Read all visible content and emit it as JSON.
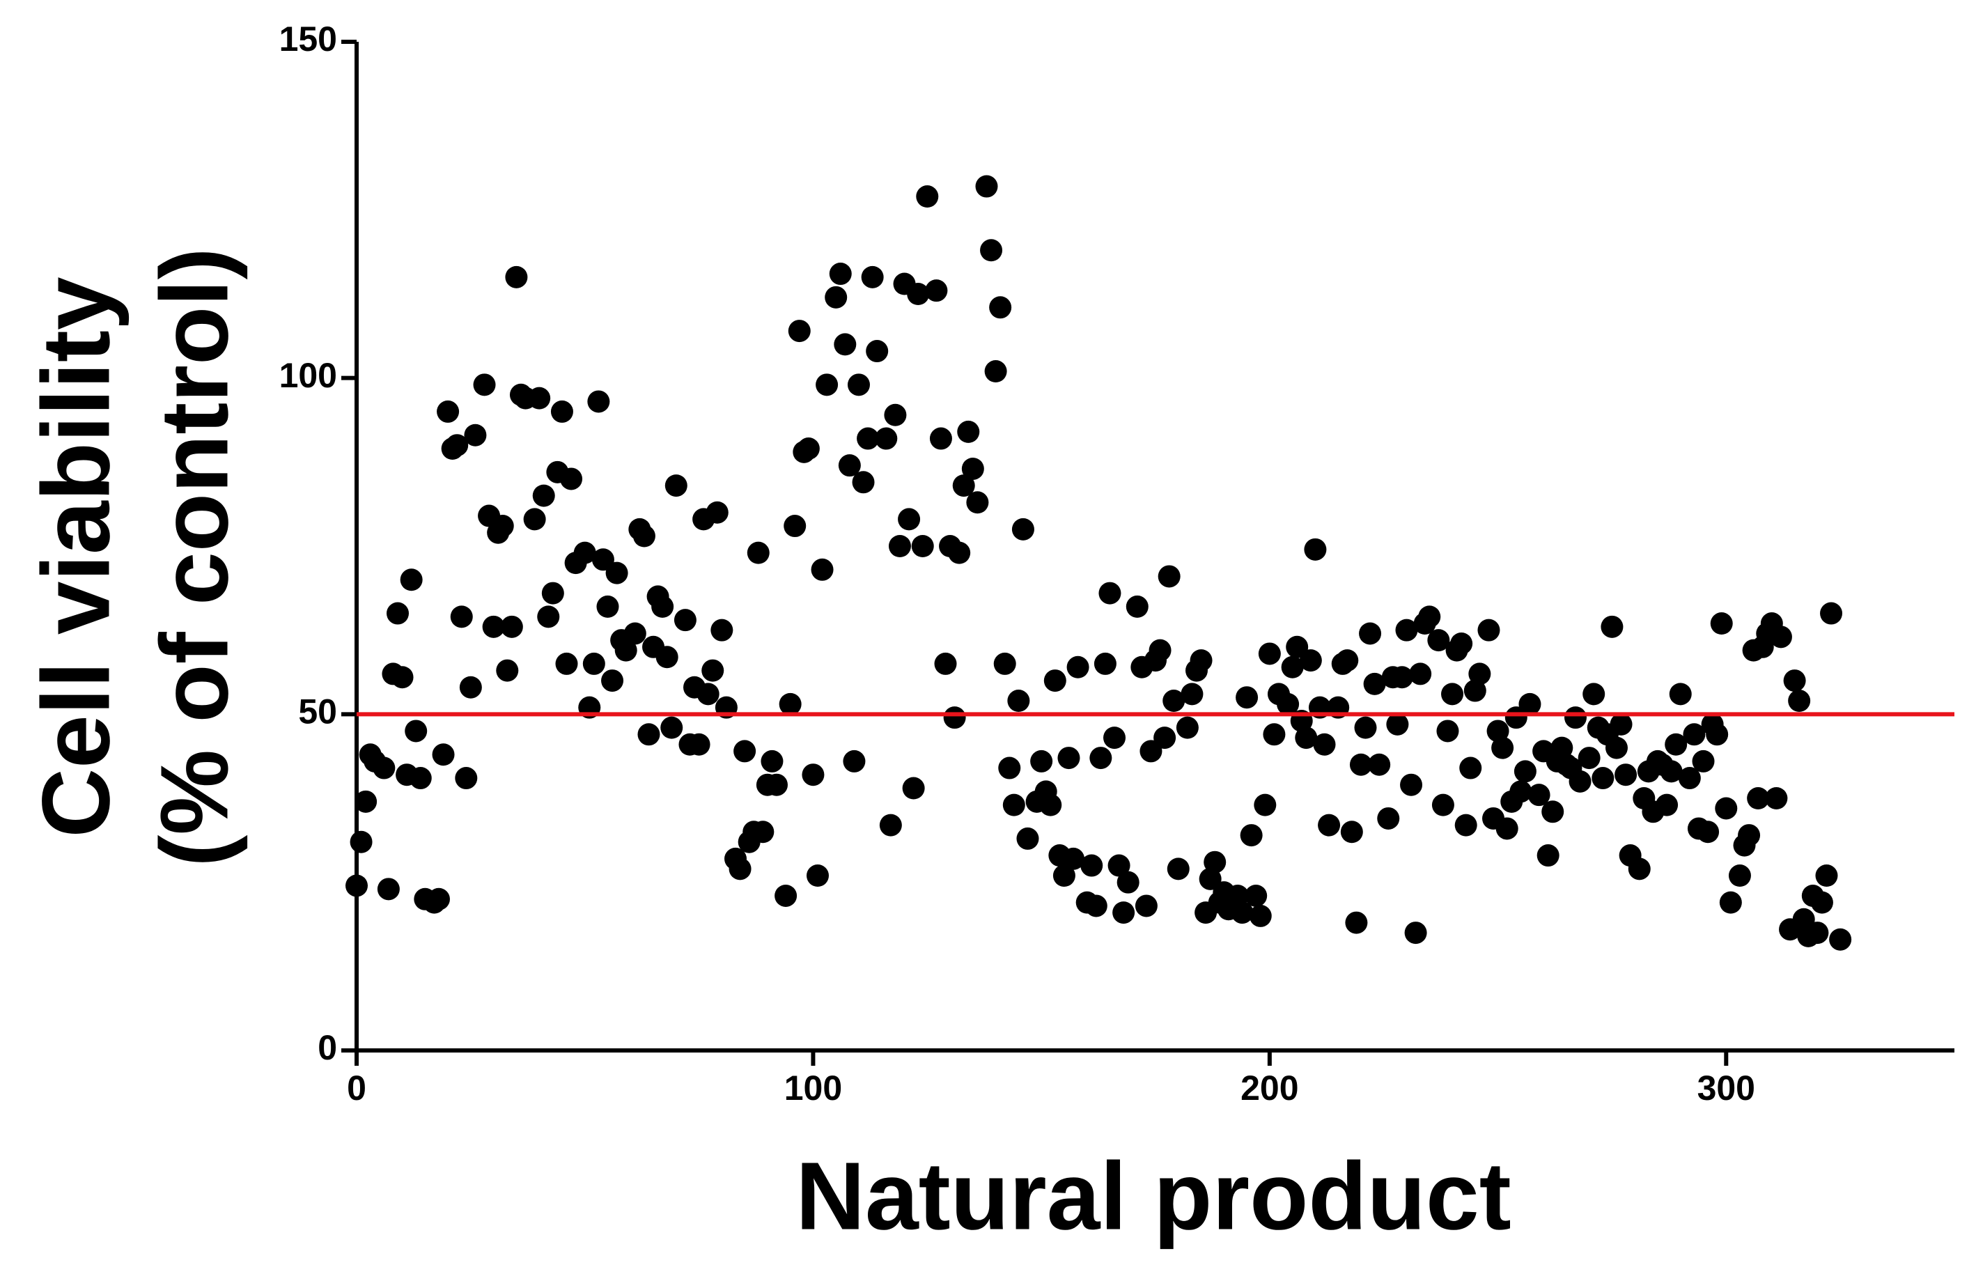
{
  "chart_data": {
    "type": "scatter",
    "xlabel": "Natural product",
    "ylabel": [
      "Cell viability",
      "(% of control)"
    ],
    "xlim": [
      0,
      350
    ],
    "xticks": [
      0,
      100,
      200,
      300
    ],
    "ylim": [
      0,
      150
    ],
    "yticks": [
      0,
      50,
      100,
      150
    ],
    "color": "#000000",
    "reference_line": {
      "value": 50,
      "color": "#e8141b"
    },
    "x": [
      0,
      1,
      2,
      3,
      4,
      6,
      7,
      8,
      9,
      10,
      11,
      12,
      13,
      14,
      15,
      17,
      18,
      19,
      20,
      21,
      22,
      23,
      24,
      25,
      26,
      28,
      29,
      30,
      31,
      32,
      33,
      34,
      35,
      36,
      37,
      39,
      40,
      41,
      42,
      43,
      44,
      45,
      46,
      47,
      48,
      50,
      51,
      52,
      53,
      54,
      55,
      56,
      57,
      58,
      59,
      61,
      62,
      63,
      64,
      65,
      66,
      67,
      68,
      69,
      70,
      72,
      73,
      74,
      75,
      76,
      77,
      78,
      79,
      80,
      81,
      83,
      84,
      85,
      86,
      87,
      88,
      89,
      90,
      91,
      92,
      94,
      95,
      96,
      97,
      98,
      99,
      100,
      101,
      102,
      103,
      105,
      106,
      107,
      108,
      109,
      110,
      111,
      112,
      113,
      114,
      116,
      117,
      118,
      119,
      120,
      121,
      122,
      123,
      124,
      125,
      127,
      128,
      129,
      130,
      131,
      132,
      133,
      134,
      135,
      136,
      138,
      139,
      140,
      141,
      142,
      143,
      144,
      145,
      146,
      147,
      149,
      150,
      151,
      152,
      153,
      154,
      155,
      156,
      157,
      158,
      160,
      161,
      162,
      163,
      164,
      165,
      166,
      167,
      168,
      169,
      171,
      172,
      173,
      174,
      175,
      176,
      177,
      178,
      179,
      180,
      182,
      183,
      184,
      185,
      186,
      187,
      188,
      189,
      190,
      191,
      193,
      194,
      195,
      196,
      197,
      198,
      199,
      200,
      201,
      202,
      204,
      205,
      206,
      207,
      208,
      209,
      210,
      211,
      212,
      213,
      215,
      216,
      217,
      218,
      219,
      220,
      221,
      222,
      223,
      224,
      226,
      227,
      228,
      229,
      230,
      231,
      232,
      233,
      234,
      235,
      237,
      238,
      239,
      240,
      241,
      242,
      243,
      244,
      245,
      246,
      248,
      249,
      250,
      251,
      252,
      253,
      254,
      255,
      256,
      257,
      259,
      260,
      261,
      262,
      263,
      264,
      265,
      266,
      267,
      268,
      270,
      271,
      272,
      273,
      274,
      275,
      276,
      277,
      278,
      279,
      281,
      282,
      283,
      284,
      285,
      286,
      287,
      288,
      289,
      290,
      292,
      293,
      294,
      295,
      296,
      297,
      298,
      299,
      300,
      301,
      303,
      304,
      305,
      306,
      307,
      308,
      309,
      310,
      311,
      312,
      314,
      315,
      316,
      317,
      318,
      319,
      320,
      321,
      322,
      323,
      325
    ],
    "values": [
      24.5,
      31,
      37,
      44,
      43,
      42,
      24,
      56,
      65,
      55.5,
      41,
      70,
      47.5,
      40.5,
      22.5,
      22,
      22.5,
      44,
      95,
      89.5,
      90,
      64.5,
      40.5,
      54,
      91.5,
      99,
      79.5,
      63,
      77,
      78,
      56.5,
      63,
      115,
      97.5,
      97,
      79,
      97,
      82.5,
      64.5,
      68,
      86,
      95,
      57.5,
      85,
      72.5,
      74,
      51,
      57.5,
      96.5,
      73,
      66,
      55,
      71,
      61,
      59.5,
      62,
      77.5,
      76.5,
      47,
      60,
      67.5,
      66,
      58.5,
      48,
      84,
      64,
      45.5,
      54,
      45.5,
      79,
      53,
      56.5,
      80,
      62.5,
      51,
      28.5,
      27,
      44.5,
      31,
      32.5,
      74,
      32.5,
      39.5,
      43,
      39.5,
      23,
      51.5,
      78,
      107,
      89,
      89.5,
      41,
      26,
      71.5,
      99,
      112,
      115.5,
      105,
      87,
      43,
      99,
      84.5,
      91,
      115,
      104,
      91,
      33.5,
      94.5,
      75,
      114,
      79,
      39,
      112.5,
      75,
      127,
      113,
      91,
      57.5,
      75,
      49.5,
      74,
      84,
      92,
      86.5,
      81.5,
      128.5,
      119,
      101,
      110.5,
      57.5,
      42,
      36.5,
      52,
      77.5,
      31.5,
      37,
      43,
      38.5,
      36.5,
      55,
      29,
      26,
      43.5,
      28.5,
      57,
      22,
      27.5,
      21.5,
      43.5,
      57.5,
      68,
      46.5,
      27.5,
      20.5,
      25,
      66,
      57,
      21.5,
      44.5,
      58,
      59.5,
      46.5,
      70.5,
      52,
      27,
      48,
      53,
      56.5,
      58,
      20.5,
      25.5,
      28,
      22,
      23.5,
      21,
      23,
      20.5,
      52.5,
      32,
      23,
      20,
      36.5,
      59,
      47,
      53,
      51.5,
      57,
      60,
      49,
      46.5,
      58,
      74.5,
      51,
      45.5,
      33.5,
      51,
      57.5,
      58,
      32.5,
      19,
      42.5,
      48,
      62,
      54.5,
      42.5,
      34.5,
      55.5,
      48.5,
      55.5,
      62.5,
      39.5,
      17.5,
      56,
      63.5,
      64.5,
      61,
      36.5,
      47.5,
      53,
      59.5,
      60.5,
      33.5,
      42,
      53.5,
      56,
      62.5,
      34.5,
      47.5,
      45,
      33,
      37,
      49.5,
      38.5,
      41.5,
      51.5,
      38,
      44.5,
      29,
      35.5,
      43,
      45,
      42.5,
      42,
      49.5,
      40,
      43.5,
      53,
      48,
      40.5,
      47,
      63,
      45,
      48.5,
      41,
      29,
      27,
      37.5,
      41.5,
      35.5,
      43,
      42.5,
      36.5,
      41.5,
      45.5,
      53,
      40.5,
      47,
      33,
      43,
      32.5,
      48.5,
      47,
      63.5,
      36,
      22,
      26,
      30.5,
      32,
      59.5,
      37.5,
      60,
      62,
      63.5,
      37.5,
      61.5,
      18,
      55,
      52,
      19.5,
      17,
      23,
      17.5,
      22,
      26,
      65,
      16.5
    ]
  }
}
